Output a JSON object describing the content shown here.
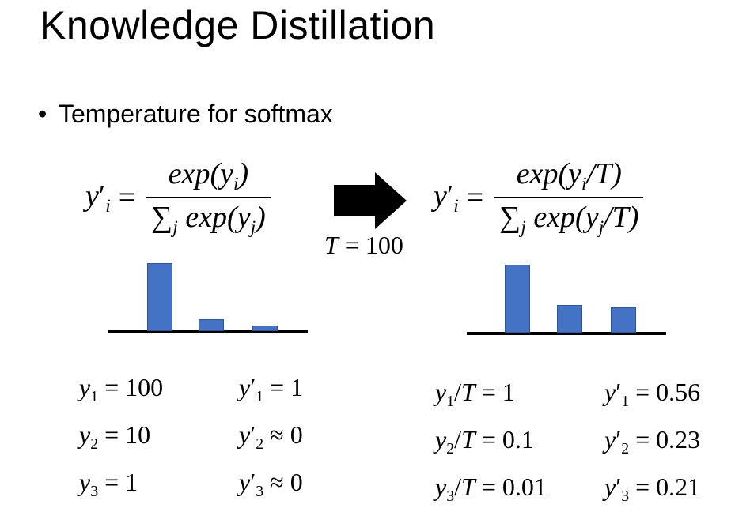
{
  "title": "Knowledge Distillation",
  "bullet": "Temperature for softmax",
  "bullet_symbol": "•",
  "arrow_label": "T = 100",
  "left_formula": {
    "lhs": "y'i",
    "numerator": "exp(yi)",
    "denominator": "∑j exp(yj)"
  },
  "right_formula": {
    "lhs": "y'i",
    "numerator": "exp(yi/T)",
    "denominator": "∑j exp(yj/T)"
  },
  "left_values": [
    {
      "y": "y1 = 100",
      "p": "y'1 = 1"
    },
    {
      "y": "y2 = 10",
      "p": "y'2 ≈ 0"
    },
    {
      "y": "y3 = 1",
      "p": "y'3 ≈ 0"
    }
  ],
  "right_values": [
    {
      "y": "y1/T = 1",
      "p": "y'1 = 0.56"
    },
    {
      "y": "y2/T = 0.1",
      "p": "y'2 = 0.23"
    },
    {
      "y": "y3/T = 0.01",
      "p": "y'3 = 0.21"
    }
  ],
  "left_bars": [
    1.0,
    0.18,
    0.08
  ],
  "right_bars": [
    0.56,
    0.23,
    0.21
  ],
  "colors": {
    "bar": "#4472c4",
    "bar_border": "#2f5597"
  }
}
